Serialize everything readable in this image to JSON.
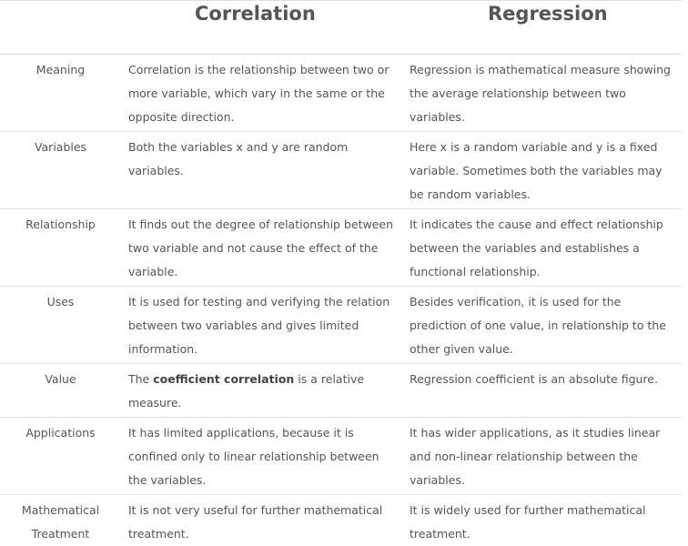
{
  "header": {
    "col1": "",
    "col2": "Correlation",
    "col3": "Regression"
  },
  "rows": [
    {
      "label": "Meaning",
      "correlation": "Correlation is the relationship between two or more variable, which vary in the same or the opposite direction.",
      "regression": "Regression is mathematical measure showing the average relationship between two variables."
    },
    {
      "label": "Variables",
      "correlation": "Both the variables x and y are random variables.",
      "regression": "Here x is a random variable and y is a fixed variable. Sometimes both the variables may be random variables."
    },
    {
      "label": "Relationship",
      "correlation": "It finds out the degree of relationship between two variable and not cause the effect of the variable.",
      "regression": "It indicates the cause and effect relationship between the variables and establishes a functional relationship."
    },
    {
      "label": "Uses",
      "correlation": "It is used for testing and verifying the relation between two variables and gives limited information.",
      "regression": "Besides verification, it is used for the prediction of one value, in relationship to the other given value."
    },
    {
      "label": "Value",
      "correlation_pre": "The ",
      "correlation_bold": "coefficient correlation",
      "correlation_post": " is a relative measure.",
      "regression": "Regression coefficient is an absolute figure."
    },
    {
      "label": "Applications",
      "correlation": "It has limited applications, because it is confined only to linear relationship between the variables.",
      "regression": "It has wider applications, as it studies linear and non-linear relationship between the variables."
    },
    {
      "label": "Mathematical Treatment",
      "correlation": "It is not very useful for further mathematical treatment.",
      "regression": "It is widely used for further mathematical treatment."
    }
  ]
}
